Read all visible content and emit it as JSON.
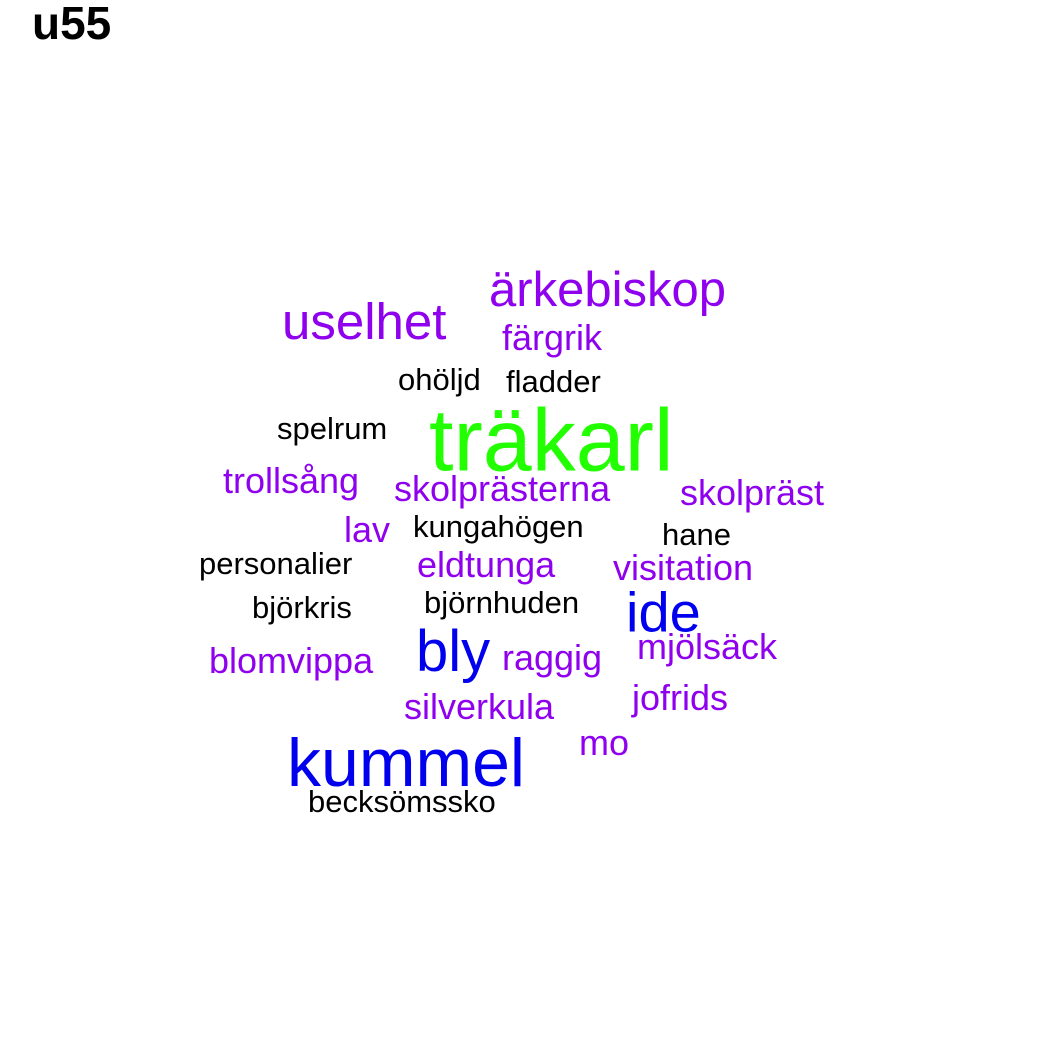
{
  "title": "u55",
  "colors": {
    "green": "#22ff00",
    "blue": "#0000ee",
    "purple": "#8f00ee",
    "black": "#000000"
  },
  "words": [
    {
      "text": "träkarl",
      "color": "green",
      "size": "largest"
    },
    {
      "text": "kummel",
      "color": "blue",
      "size": "large"
    },
    {
      "text": "bly",
      "color": "blue",
      "size": "large"
    },
    {
      "text": "ide",
      "color": "blue",
      "size": "large"
    },
    {
      "text": "uselhet",
      "color": "purple",
      "size": "medium"
    },
    {
      "text": "ärkebiskop",
      "color": "purple",
      "size": "medium"
    },
    {
      "text": "färgrik",
      "color": "purple",
      "size": "small"
    },
    {
      "text": "trollsång",
      "color": "purple",
      "size": "small"
    },
    {
      "text": "skolprästerna",
      "color": "purple",
      "size": "small"
    },
    {
      "text": "skolpräst",
      "color": "purple",
      "size": "small"
    },
    {
      "text": "lav",
      "color": "purple",
      "size": "small"
    },
    {
      "text": "eldtunga",
      "color": "purple",
      "size": "small"
    },
    {
      "text": "visitation",
      "color": "purple",
      "size": "small"
    },
    {
      "text": "blomvippa",
      "color": "purple",
      "size": "small"
    },
    {
      "text": "raggig",
      "color": "purple",
      "size": "small"
    },
    {
      "text": "mjölsäck",
      "color": "purple",
      "size": "small"
    },
    {
      "text": "silverkula",
      "color": "purple",
      "size": "small"
    },
    {
      "text": "jofrids",
      "color": "purple",
      "size": "small"
    },
    {
      "text": "mo",
      "color": "purple",
      "size": "small"
    },
    {
      "text": "ohöljd",
      "color": "black",
      "size": "smallest"
    },
    {
      "text": "fladder",
      "color": "black",
      "size": "smallest"
    },
    {
      "text": "spelrum",
      "color": "black",
      "size": "smallest"
    },
    {
      "text": "kungahögen",
      "color": "black",
      "size": "smallest"
    },
    {
      "text": "hane",
      "color": "black",
      "size": "smallest"
    },
    {
      "text": "personalier",
      "color": "black",
      "size": "smallest"
    },
    {
      "text": "björkris",
      "color": "black",
      "size": "smallest"
    },
    {
      "text": "björnhuden",
      "color": "black",
      "size": "smallest"
    },
    {
      "text": "becksömssko",
      "color": "black",
      "size": "smallest"
    }
  ]
}
